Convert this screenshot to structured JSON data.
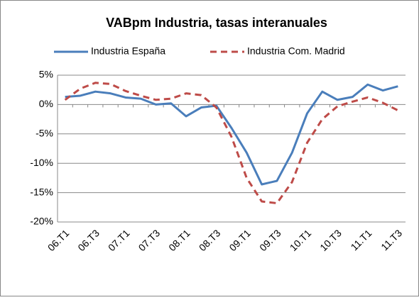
{
  "chart_data": {
    "type": "line",
    "title": "VABpm Industria, tasas interanuales",
    "categories": [
      "06.T1",
      null,
      "06.T3",
      null,
      "07.T1",
      null,
      "07.T3",
      null,
      "08.T1",
      null,
      "08.T3",
      null,
      "09.T1",
      null,
      "09.T3",
      null,
      "10.T1",
      null,
      "10.T3",
      null,
      "11.T1",
      null,
      "11.T3"
    ],
    "series": [
      {
        "name": "Industria España",
        "color": "#4a7ebb",
        "dash": "solid",
        "values": [
          1.3,
          1.5,
          2.2,
          1.9,
          1.2,
          1.0,
          0.0,
          0.2,
          -2.0,
          -0.5,
          -0.2,
          -4.0,
          -8.2,
          -13.6,
          -13.0,
          -8.2,
          -1.5,
          2.2,
          0.8,
          1.3,
          3.4,
          2.4,
          3.1
        ]
      },
      {
        "name": "Industria Com. Madrid",
        "color": "#be4b48",
        "dash": "dashed",
        "values": [
          0.8,
          2.7,
          3.7,
          3.5,
          2.3,
          1.5,
          0.8,
          1.0,
          1.9,
          1.6,
          -0.5,
          -5.5,
          -12.5,
          -16.5,
          -16.8,
          -13.2,
          -6.5,
          -2.5,
          -0.3,
          0.5,
          1.2,
          0.3,
          -1.0
        ]
      }
    ],
    "ylim": [
      -20,
      5
    ],
    "yticks": [
      {
        "value": -20,
        "label": "-20%"
      },
      {
        "value": -15,
        "label": "-15%"
      },
      {
        "value": -10,
        "label": "-10%"
      },
      {
        "value": -5,
        "label": "-5%"
      },
      {
        "value": 0,
        "label": "0%"
      },
      {
        "value": 5,
        "label": "5%"
      }
    ],
    "grid": true,
    "legend": "top"
  }
}
